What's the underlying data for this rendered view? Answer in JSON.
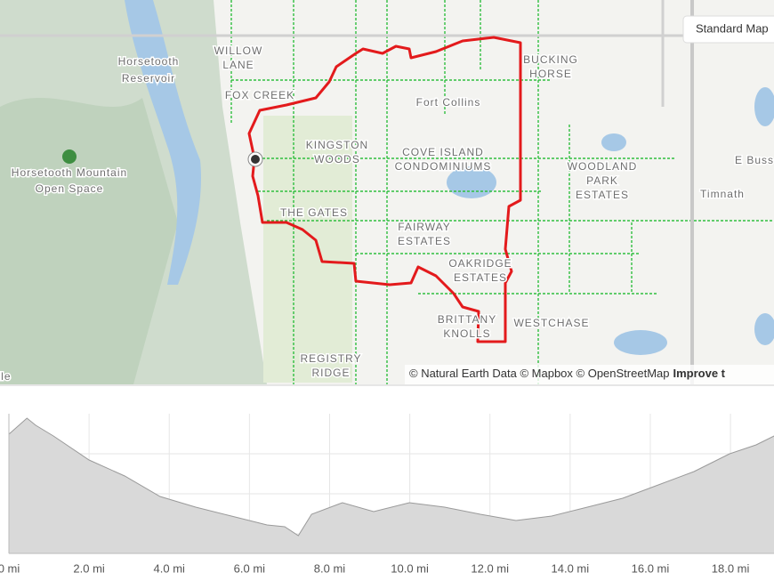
{
  "map": {
    "button": "Standard Map",
    "labels": [
      {
        "lines": [
          "Horsetooth",
          "Reservoir"
        ],
        "kind": "water"
      },
      {
        "lines": [
          "Horsetooth Mountain",
          "Open Space"
        ],
        "kind": "park"
      },
      {
        "lines": [
          "WILLOW",
          "LANE"
        ],
        "kind": "area"
      },
      {
        "lines": [
          "FOX CREEK"
        ],
        "kind": "area"
      },
      {
        "lines": [
          "Fort Collins"
        ],
        "kind": "city"
      },
      {
        "lines": [
          "KINGSTON",
          "WOODS"
        ],
        "kind": "area"
      },
      {
        "lines": [
          "COVE ISLAND",
          "CONDOMINIUMS"
        ],
        "kind": "area"
      },
      {
        "lines": [
          "THE GATES"
        ],
        "kind": "area"
      },
      {
        "lines": [
          "FAIRWAY",
          "ESTATES"
        ],
        "kind": "area"
      },
      {
        "lines": [
          "OAKRIDGE",
          "ESTATES"
        ],
        "kind": "area"
      },
      {
        "lines": [
          "BRITTANY",
          "KNOLLS"
        ],
        "kind": "area"
      },
      {
        "lines": [
          "WESTCHASE"
        ],
        "kind": "area"
      },
      {
        "lines": [
          "REGISTRY",
          "RIDGE"
        ],
        "kind": "area"
      },
      {
        "lines": [
          "BUCKING",
          "HORSE"
        ],
        "kind": "area"
      },
      {
        "lines": [
          "WOODLAND",
          "PARK",
          "ESTATES"
        ],
        "kind": "area"
      },
      {
        "lines": [
          "E Buss"
        ],
        "kind": "road"
      },
      {
        "lines": [
          "Timnath"
        ],
        "kind": "town"
      },
      {
        "lines": [
          "lle"
        ],
        "kind": "town"
      }
    ],
    "attribution": "© Natural Earth Data © Mapbox © OpenStreetMap",
    "improve": "Improve t"
  },
  "chart_data": {
    "type": "area",
    "color": "#d9d9d9",
    "x": [
      0,
      0.45,
      0.67,
      1.11,
      2.0,
      2.89,
      3.77,
      4.66,
      5.55,
      6.44,
      6.88,
      7.22,
      7.55,
      8.32,
      9.1,
      9.99,
      10.87,
      11.76,
      12.65,
      13.54,
      14.43,
      15.31,
      16.2,
      17.09,
      17.98,
      18.64,
      19.09
    ],
    "values": [
      134,
      152,
      144,
      132,
      105,
      87,
      64,
      52,
      42,
      32,
      30,
      20,
      44,
      57,
      47,
      57,
      52,
      44,
      37,
      42,
      52,
      62,
      77,
      92,
      112,
      122,
      132
    ],
    "xlim": [
      0,
      19.09
    ],
    "ylim": [
      0,
      157
    ],
    "xticks": [
      {
        "value": 0,
        "label": "0 mi"
      },
      {
        "value": 2,
        "label": "2.0 mi"
      },
      {
        "value": 4,
        "label": "4.0 mi"
      },
      {
        "value": 6,
        "label": "6.0 mi"
      },
      {
        "value": 8,
        "label": "8.0 mi"
      },
      {
        "value": 10,
        "label": "10.0 mi"
      },
      {
        "value": 12,
        "label": "12.0 mi"
      },
      {
        "value": 14,
        "label": "14.0 mi"
      },
      {
        "value": 16,
        "label": "16.0 mi"
      },
      {
        "value": 18,
        "label": "18.0 mi"
      }
    ]
  }
}
